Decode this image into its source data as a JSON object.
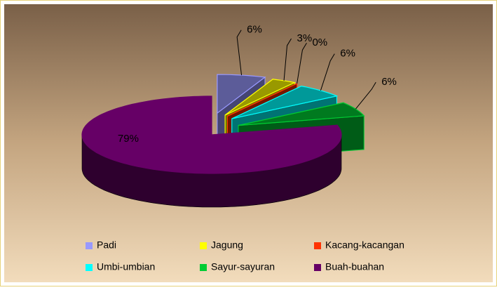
{
  "chart_data": {
    "type": "pie",
    "categories": [
      "Padi",
      "Jagung",
      "Kacang-kacangan",
      "Umbi-umbian",
      "Sayur-sayuran",
      "Buah-buahan"
    ],
    "values": [
      6,
      3,
      0,
      6,
      6,
      79
    ],
    "value_labels": [
      "6%",
      "3%",
      "0%",
      "6%",
      "6%",
      "79%"
    ],
    "colors": [
      "#9999ff",
      "#ffff00",
      "#ff3300",
      "#00ffff",
      "#00cc33",
      "#660066"
    ]
  }
}
